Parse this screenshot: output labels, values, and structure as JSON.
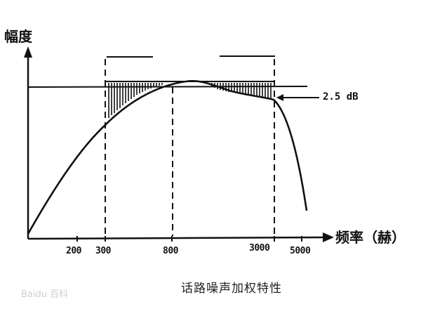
{
  "y_axis_label": "幅度",
  "x_axis_label": "频率（赫）",
  "x_ticks": [
    "200",
    "300",
    "800",
    "3000",
    "5000"
  ],
  "annotation": "2.5 dB",
  "caption": "话路噪声加权特性",
  "watermark": "Baidu 百科",
  "colors": {
    "ink": "#111111",
    "watermark": "#cccccc"
  }
}
